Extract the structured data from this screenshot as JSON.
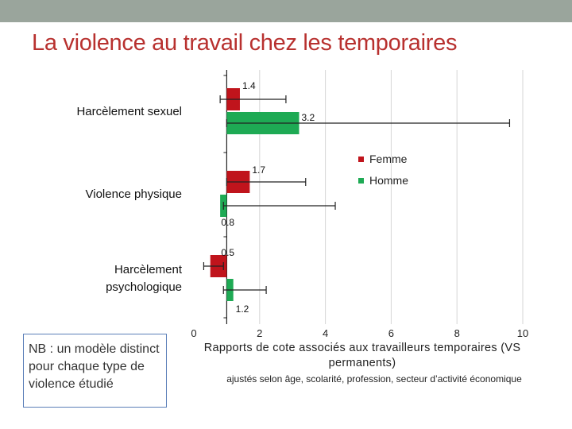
{
  "slide": {
    "title": "La violence au travail chez les temporaires",
    "note": "NB : un modèle distinct pour chaque type de violence étudié"
  },
  "colors": {
    "femme": "#c0141c",
    "homme": "#1eaa54",
    "title": "#b8312f",
    "top_bar": "#9aa59c",
    "grid": "#d6d6d6",
    "axis": "#222222"
  },
  "chart_data": {
    "type": "bar",
    "orientation": "horizontal",
    "categories": [
      "Harcèlement sexuel",
      "Violence physique",
      "Harcèlement\npsychologique"
    ],
    "series": [
      {
        "name": "Femme",
        "values": [
          1.4,
          1.7,
          0.5
        ],
        "value_labels": [
          "1.4",
          "1.7",
          "0.5"
        ],
        "ci_low": [
          0.8,
          1.0,
          0.3
        ],
        "ci_high": [
          2.8,
          3.4,
          0.9
        ]
      },
      {
        "name": "Homme",
        "values": [
          3.2,
          0.8,
          1.2
        ],
        "value_labels": [
          "3.2",
          "0.8",
          "1.2"
        ],
        "ci_low": [
          1.0,
          0.9,
          0.9
        ],
        "ci_high": [
          9.6,
          4.3,
          2.2
        ]
      }
    ],
    "xlim": [
      0,
      10
    ],
    "xticks": [
      0,
      2,
      4,
      6,
      8,
      10
    ],
    "reference_line": 1,
    "grid": true,
    "xlabel": "Rapports de cote associés aux travailleurs temporaires (VS permanents)",
    "xlabel_sub": "ajustés selon âge, scolarité, profession, secteur d’activité économique",
    "legend_position": "right"
  }
}
